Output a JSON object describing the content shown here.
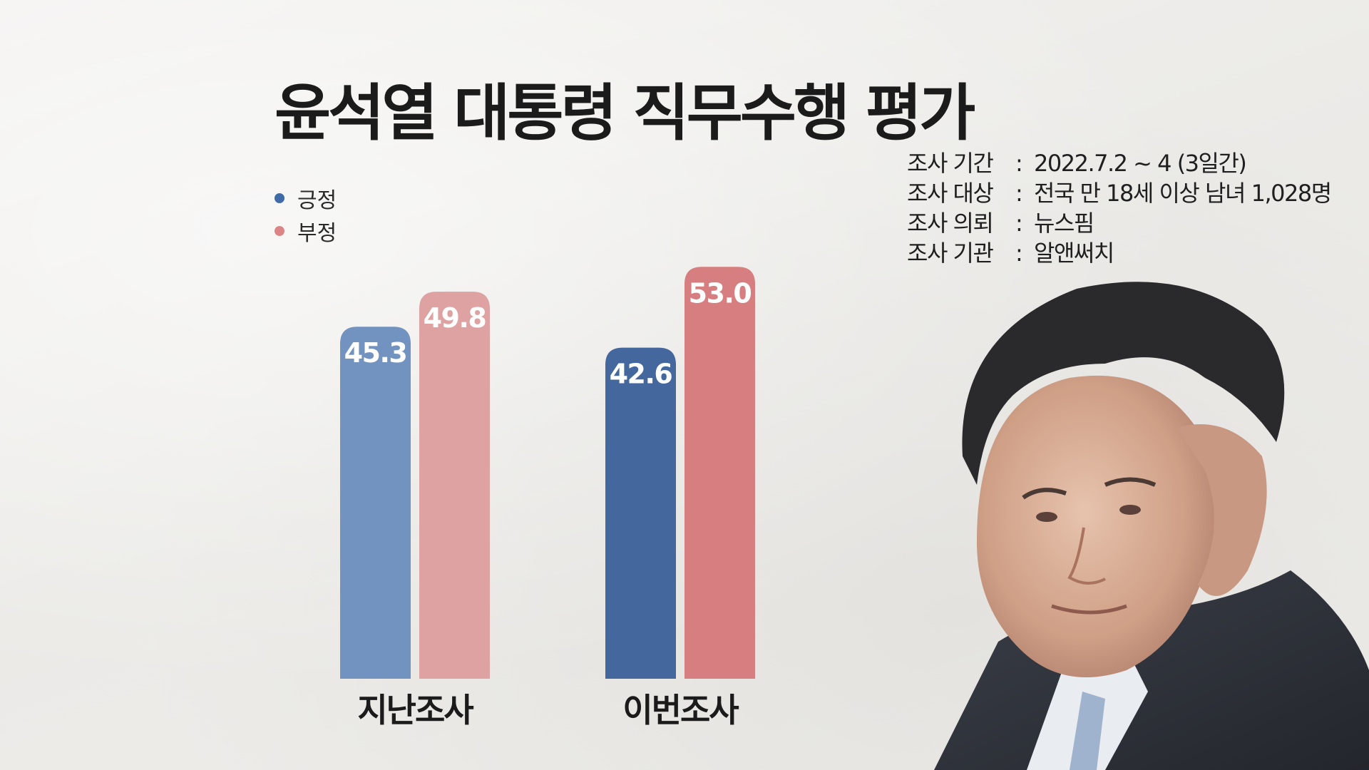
{
  "title": "윤석열 대통령 직무수행 평가",
  "legend": [
    {
      "label": "긍정",
      "color": "#3f6ba9"
    },
    {
      "label": "부정",
      "color": "#db8587"
    }
  ],
  "survey_info": [
    {
      "label": "조사 기간",
      "value": "2022.7.2 ~ 4 (3일간)"
    },
    {
      "label": "조사 대상",
      "value": "전국 만 18세 이상 남녀 1,028명"
    },
    {
      "label": "조사 의뢰",
      "value": "뉴스핌"
    },
    {
      "label": "조사 기관",
      "value": "알앤써치"
    }
  ],
  "chart_data": {
    "type": "bar",
    "categories": [
      "지난조사",
      "이번조사"
    ],
    "series": [
      {
        "name": "긍정",
        "values": [
          45.3,
          42.6
        ],
        "colors": [
          "#7293bf",
          "#44689e"
        ]
      },
      {
        "name": "부정",
        "values": [
          49.8,
          53.0
        ],
        "colors": [
          "#dea2a3",
          "#d77f80"
        ]
      }
    ],
    "ylim": [
      0,
      60
    ],
    "grid": false,
    "legend_position": "top-left",
    "data_labels": true
  }
}
